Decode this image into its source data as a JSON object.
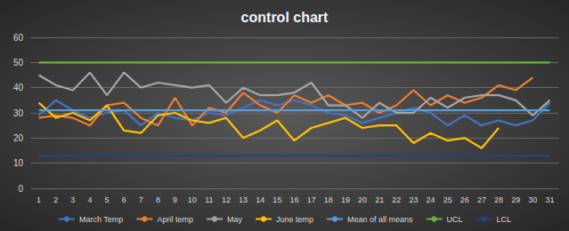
{
  "chart_data": {
    "type": "line",
    "title": "control chart",
    "categories": [
      1,
      2,
      3,
      4,
      5,
      6,
      7,
      8,
      9,
      10,
      11,
      12,
      13,
      14,
      15,
      16,
      17,
      18,
      19,
      20,
      21,
      22,
      23,
      24,
      25,
      26,
      27,
      28,
      29,
      30,
      31
    ],
    "series": [
      {
        "name": "March Temp",
        "color": "#4472c4",
        "values": [
          29,
          35,
          31,
          28,
          30,
          31,
          25,
          30,
          28,
          27,
          30,
          29,
          32,
          35,
          33,
          35,
          33,
          30,
          29,
          26,
          28,
          30,
          32,
          30,
          25,
          29,
          25,
          27,
          25,
          27,
          34
        ]
      },
      {
        "name": "April temp",
        "color": "#ed7d31",
        "values": [
          28,
          29,
          28,
          25,
          33,
          34,
          28,
          25,
          36,
          25,
          32,
          30,
          38,
          33,
          30,
          37,
          34,
          37,
          33,
          34,
          30,
          33,
          39,
          33,
          37,
          34,
          36,
          41,
          39,
          44,
          null
        ]
      },
      {
        "name": "May",
        "color": "#a5a5a5",
        "values": [
          45,
          41,
          39,
          46,
          37,
          46,
          40,
          42,
          41,
          40,
          41,
          34,
          40,
          37,
          37,
          38,
          42,
          33,
          33,
          28,
          34,
          30,
          30,
          36,
          32,
          36,
          37,
          37,
          35,
          29,
          35
        ]
      },
      {
        "name": "June temp",
        "color": "#ffc000",
        "values": [
          34,
          28,
          30,
          27,
          33,
          23,
          22,
          29,
          30,
          27,
          26,
          28,
          20,
          23,
          27,
          19,
          24,
          26,
          28,
          24,
          25,
          25,
          18,
          22,
          19,
          20,
          16,
          24,
          null,
          null,
          null
        ]
      },
      {
        "name": "Mean of all means",
        "color": "#5b9bd5",
        "values": [
          31,
          31,
          31,
          31,
          31,
          31,
          31,
          31,
          31,
          31,
          31,
          31,
          31,
          31,
          31,
          31,
          31,
          31,
          31,
          31,
          31,
          31,
          31,
          31,
          31,
          31,
          31,
          31,
          31,
          31,
          31
        ]
      },
      {
        "name": "UCL",
        "color": "#70ad47",
        "values": [
          50,
          50,
          50,
          50,
          50,
          50,
          50,
          50,
          50,
          50,
          50,
          50,
          50,
          50,
          50,
          50,
          50,
          50,
          50,
          50,
          50,
          50,
          50,
          50,
          50,
          50,
          50,
          50,
          50,
          50,
          50
        ]
      },
      {
        "name": "LCL",
        "color": "#264478",
        "values": [
          13,
          13,
          13,
          13,
          13,
          13,
          13,
          13,
          13,
          13,
          13,
          13,
          13,
          13,
          13,
          13,
          13,
          13,
          13,
          13,
          13,
          13,
          13,
          13,
          13,
          13,
          13,
          13,
          13,
          13,
          13
        ]
      }
    ],
    "ylim": [
      0,
      60
    ],
    "yticks": [
      0,
      10,
      20,
      30,
      40,
      50,
      60
    ],
    "grid": true,
    "legend": "bottom"
  }
}
